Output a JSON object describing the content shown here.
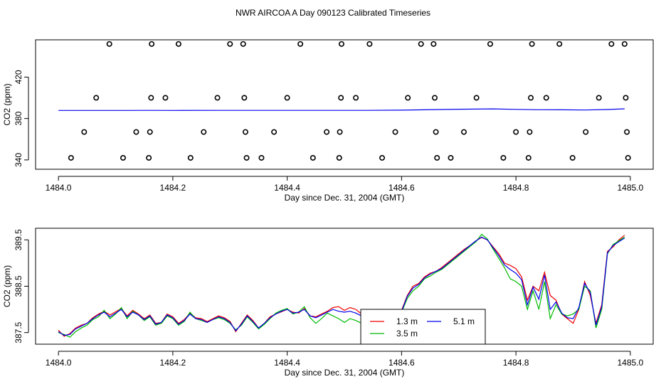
{
  "title": "NWR AIRCOA A  Day 090123  Calibrated Timeseries",
  "colors": {
    "series_1_3m": "#ee0000",
    "series_3_5m": "#00bb00",
    "series_5_1m": "#0000ee",
    "points": "#000000"
  },
  "chart_data": [
    {
      "type": "scatter",
      "title": "",
      "xlabel": "Day since Dec. 31, 2004 (GMT)",
      "ylabel": "CO2 (ppm)",
      "xlim": [
        1483.96,
        1485.04
      ],
      "ylim": [
        331,
        456
      ],
      "xticks": [
        "1484.0",
        "1484.2",
        "1484.4",
        "1484.6",
        "1484.8",
        "1485.0"
      ],
      "yticks": [
        "340",
        "380",
        "420"
      ],
      "grid": false,
      "points": [
        {
          "x": 1484.022,
          "y": 342
        },
        {
          "x": 1484.045,
          "y": 367
        },
        {
          "x": 1484.066,
          "y": 400
        },
        {
          "x": 1484.089,
          "y": 452
        },
        {
          "x": 1484.113,
          "y": 342
        },
        {
          "x": 1484.136,
          "y": 367
        },
        {
          "x": 1484.158,
          "y": 342
        },
        {
          "x": 1484.16,
          "y": 367
        },
        {
          "x": 1484.162,
          "y": 400
        },
        {
          "x": 1484.163,
          "y": 452
        },
        {
          "x": 1484.187,
          "y": 400
        },
        {
          "x": 1484.21,
          "y": 452
        },
        {
          "x": 1484.231,
          "y": 342
        },
        {
          "x": 1484.254,
          "y": 367
        },
        {
          "x": 1484.278,
          "y": 400
        },
        {
          "x": 1484.3,
          "y": 452
        },
        {
          "x": 1484.323,
          "y": 452
        },
        {
          "x": 1484.325,
          "y": 400
        },
        {
          "x": 1484.327,
          "y": 367
        },
        {
          "x": 1484.329,
          "y": 342
        },
        {
          "x": 1484.355,
          "y": 342
        },
        {
          "x": 1484.377,
          "y": 367
        },
        {
          "x": 1484.4,
          "y": 400
        },
        {
          "x": 1484.423,
          "y": 452
        },
        {
          "x": 1484.445,
          "y": 342
        },
        {
          "x": 1484.469,
          "y": 367
        },
        {
          "x": 1484.491,
          "y": 342
        },
        {
          "x": 1484.492,
          "y": 367
        },
        {
          "x": 1484.494,
          "y": 400
        },
        {
          "x": 1484.495,
          "y": 452
        },
        {
          "x": 1484.52,
          "y": 400
        },
        {
          "x": 1484.544,
          "y": 452
        },
        {
          "x": 1484.566,
          "y": 342
        },
        {
          "x": 1484.589,
          "y": 367
        },
        {
          "x": 1484.611,
          "y": 400
        },
        {
          "x": 1484.634,
          "y": 452
        },
        {
          "x": 1484.656,
          "y": 452
        },
        {
          "x": 1484.658,
          "y": 400
        },
        {
          "x": 1484.66,
          "y": 367
        },
        {
          "x": 1484.662,
          "y": 342
        },
        {
          "x": 1484.686,
          "y": 342
        },
        {
          "x": 1484.709,
          "y": 367
        },
        {
          "x": 1484.731,
          "y": 400
        },
        {
          "x": 1484.755,
          "y": 452
        },
        {
          "x": 1484.778,
          "y": 342
        },
        {
          "x": 1484.8,
          "y": 367
        },
        {
          "x": 1484.822,
          "y": 342
        },
        {
          "x": 1484.824,
          "y": 367
        },
        {
          "x": 1484.826,
          "y": 400
        },
        {
          "x": 1484.828,
          "y": 452
        },
        {
          "x": 1484.853,
          "y": 400
        },
        {
          "x": 1484.876,
          "y": 452
        },
        {
          "x": 1484.899,
          "y": 342
        },
        {
          "x": 1484.922,
          "y": 367
        },
        {
          "x": 1484.945,
          "y": 400
        },
        {
          "x": 1484.967,
          "y": 452
        },
        {
          "x": 1484.99,
          "y": 452
        },
        {
          "x": 1484.992,
          "y": 400
        },
        {
          "x": 1484.994,
          "y": 367
        },
        {
          "x": 1484.996,
          "y": 342
        }
      ],
      "series": [
        {
          "color": "#0000ee",
          "x": [
            1484.0,
            1484.06,
            1484.12,
            1484.16,
            1484.2,
            1484.28,
            1484.35,
            1484.4,
            1484.44,
            1484.5,
            1484.54,
            1484.6,
            1484.64,
            1484.7,
            1484.76,
            1484.8,
            1484.84,
            1484.88,
            1484.92,
            1484.96,
            1484.99
          ],
          "y": [
            387.8,
            387.8,
            387.8,
            387.9,
            387.8,
            387.9,
            387.9,
            387.9,
            387.9,
            387.9,
            387.9,
            388.1,
            388.4,
            389.0,
            389.3,
            388.8,
            388.5,
            388.4,
            388.2,
            388.7,
            389.4
          ]
        }
      ]
    },
    {
      "type": "line",
      "title": "",
      "xlabel": "Day since Dec. 31, 2004 (GMT)",
      "ylabel": "CO2 (ppm)",
      "xlim": [
        1483.96,
        1485.04
      ],
      "ylim": [
        387.25,
        389.75
      ],
      "xticks": [
        "1484.0",
        "1484.2",
        "1484.4",
        "1484.6",
        "1484.8",
        "1485.0"
      ],
      "yticks": [
        "387.5",
        "388.5",
        "389.5"
      ],
      "grid": false,
      "legend_position": "bottom-center",
      "series": [
        {
          "name": "1.3 m",
          "color": "#ee0000",
          "x": [
            1484.0,
            1484.01,
            1484.02,
            1484.03,
            1484.04,
            1484.05,
            1484.06,
            1484.07,
            1484.08,
            1484.09,
            1484.1,
            1484.11,
            1484.12,
            1484.13,
            1484.14,
            1484.15,
            1484.16,
            1484.17,
            1484.18,
            1484.19,
            1484.2,
            1484.21,
            1484.22,
            1484.23,
            1484.24,
            1484.25,
            1484.26,
            1484.27,
            1484.28,
            1484.29,
            1484.3,
            1484.31,
            1484.32,
            1484.33,
            1484.34,
            1484.35,
            1484.36,
            1484.37,
            1484.38,
            1484.39,
            1484.4,
            1484.41,
            1484.42,
            1484.43,
            1484.44,
            1484.45,
            1484.46,
            1484.47,
            1484.48,
            1484.49,
            1484.5,
            1484.51,
            1484.52,
            1484.53,
            1484.54,
            1484.55,
            1484.56,
            1484.57,
            1484.58,
            1484.59,
            1484.6,
            1484.61,
            1484.62,
            1484.63,
            1484.64,
            1484.65,
            1484.66,
            1484.67,
            1484.68,
            1484.69,
            1484.7,
            1484.71,
            1484.72,
            1484.73,
            1484.74,
            1484.75,
            1484.76,
            1484.77,
            1484.78,
            1484.79,
            1484.8,
            1484.81,
            1484.82,
            1484.83,
            1484.84,
            1484.85,
            1484.86,
            1484.87,
            1484.88,
            1484.89,
            1484.9,
            1484.91,
            1484.92,
            1484.93,
            1484.94,
            1484.95,
            1484.96,
            1484.97,
            1484.98,
            1484.99
          ],
          "y": [
            387.55,
            387.42,
            387.48,
            387.6,
            387.66,
            387.7,
            387.82,
            387.9,
            387.96,
            387.88,
            387.95,
            388.02,
            387.86,
            387.98,
            387.9,
            387.8,
            387.88,
            387.7,
            387.72,
            387.9,
            387.84,
            387.7,
            387.78,
            387.92,
            387.82,
            387.8,
            387.74,
            387.8,
            387.86,
            387.82,
            387.74,
            387.52,
            387.7,
            387.88,
            387.76,
            387.6,
            387.7,
            387.84,
            387.9,
            387.95,
            388.0,
            387.94,
            387.92,
            388.02,
            387.86,
            387.84,
            387.9,
            387.96,
            388.04,
            388.06,
            387.98,
            388.04,
            388.0,
            387.9,
            387.96,
            387.92,
            388.0,
            387.94,
            387.98,
            387.92,
            387.98,
            388.3,
            388.5,
            388.56,
            388.7,
            388.78,
            388.82,
            388.9,
            389.0,
            389.1,
            389.2,
            389.3,
            389.38,
            389.48,
            389.55,
            389.5,
            389.35,
            389.2,
            389.0,
            388.95,
            388.88,
            388.7,
            388.2,
            388.5,
            388.4,
            388.8,
            388.3,
            388.2,
            387.9,
            387.8,
            387.7,
            388.0,
            388.6,
            388.3,
            387.7,
            388.1,
            389.25,
            389.35,
            389.5,
            389.6
          ]
        },
        {
          "name": "3.5 m",
          "color": "#00bb00",
          "x": [
            1484.0,
            1484.01,
            1484.02,
            1484.03,
            1484.04,
            1484.05,
            1484.06,
            1484.07,
            1484.08,
            1484.09,
            1484.1,
            1484.11,
            1484.12,
            1484.13,
            1484.14,
            1484.15,
            1484.16,
            1484.17,
            1484.18,
            1484.19,
            1484.2,
            1484.21,
            1484.22,
            1484.23,
            1484.24,
            1484.25,
            1484.26,
            1484.27,
            1484.28,
            1484.29,
            1484.3,
            1484.31,
            1484.32,
            1484.33,
            1484.34,
            1484.35,
            1484.36,
            1484.37,
            1484.38,
            1484.39,
            1484.4,
            1484.41,
            1484.42,
            1484.43,
            1484.44,
            1484.45,
            1484.46,
            1484.47,
            1484.48,
            1484.49,
            1484.5,
            1484.51,
            1484.52,
            1484.53,
            1484.54,
            1484.55,
            1484.56,
            1484.57,
            1484.58,
            1484.59,
            1484.6,
            1484.61,
            1484.62,
            1484.63,
            1484.64,
            1484.65,
            1484.66,
            1484.67,
            1484.68,
            1484.69,
            1484.7,
            1484.71,
            1484.72,
            1484.73,
            1484.74,
            1484.75,
            1484.76,
            1484.77,
            1484.78,
            1484.79,
            1484.8,
            1484.81,
            1484.82,
            1484.83,
            1484.84,
            1484.85,
            1484.86,
            1484.87,
            1484.88,
            1484.89,
            1484.9,
            1484.91,
            1484.92,
            1484.93,
            1484.94,
            1484.95,
            1484.96,
            1484.97,
            1484.98,
            1484.99
          ],
          "y": [
            387.5,
            387.46,
            387.4,
            387.52,
            387.6,
            387.66,
            387.78,
            387.84,
            387.98,
            387.8,
            387.9,
            388.04,
            387.8,
            387.96,
            387.88,
            387.76,
            387.84,
            387.66,
            387.7,
            387.86,
            387.8,
            387.66,
            387.74,
            387.94,
            387.8,
            387.76,
            387.72,
            387.78,
            387.82,
            387.78,
            387.7,
            387.56,
            387.66,
            387.84,
            387.72,
            387.58,
            387.68,
            387.8,
            387.92,
            387.98,
            388.02,
            387.9,
            387.94,
            388.06,
            387.82,
            387.7,
            387.8,
            387.92,
            387.86,
            387.8,
            387.72,
            387.8,
            387.76,
            387.7,
            387.78,
            387.8,
            387.86,
            387.9,
            387.84,
            387.86,
            387.94,
            388.24,
            388.4,
            388.5,
            388.66,
            388.72,
            388.8,
            388.86,
            388.96,
            389.06,
            389.16,
            389.26,
            389.36,
            389.46,
            389.62,
            389.52,
            389.3,
            389.1,
            388.9,
            388.66,
            388.6,
            388.5,
            388.0,
            388.4,
            388.0,
            388.6,
            387.8,
            388.1,
            387.9,
            387.86,
            387.9,
            388.0,
            388.5,
            388.4,
            387.6,
            388.0,
            389.2,
            389.4,
            389.48,
            389.56
          ]
        },
        {
          "name": "5.1 m",
          "color": "#0000ee",
          "x": [
            1484.0,
            1484.01,
            1484.02,
            1484.03,
            1484.04,
            1484.05,
            1484.06,
            1484.07,
            1484.08,
            1484.09,
            1484.1,
            1484.11,
            1484.12,
            1484.13,
            1484.14,
            1484.15,
            1484.16,
            1484.17,
            1484.18,
            1484.19,
            1484.2,
            1484.21,
            1484.22,
            1484.23,
            1484.24,
            1484.25,
            1484.26,
            1484.27,
            1484.28,
            1484.29,
            1484.3,
            1484.31,
            1484.32,
            1484.33,
            1484.34,
            1484.35,
            1484.36,
            1484.37,
            1484.38,
            1484.39,
            1484.4,
            1484.41,
            1484.42,
            1484.43,
            1484.44,
            1484.45,
            1484.46,
            1484.47,
            1484.48,
            1484.49,
            1484.5,
            1484.51,
            1484.52,
            1484.53,
            1484.54,
            1484.55,
            1484.56,
            1484.57,
            1484.58,
            1484.59,
            1484.6,
            1484.61,
            1484.62,
            1484.63,
            1484.64,
            1484.65,
            1484.66,
            1484.67,
            1484.68,
            1484.69,
            1484.7,
            1484.71,
            1484.72,
            1484.73,
            1484.74,
            1484.75,
            1484.76,
            1484.77,
            1484.78,
            1484.79,
            1484.8,
            1484.81,
            1484.82,
            1484.83,
            1484.84,
            1484.85,
            1484.86,
            1484.87,
            1484.88,
            1484.89,
            1484.9,
            1484.91,
            1484.92,
            1484.93,
            1484.94,
            1484.95,
            1484.96,
            1484.97,
            1484.98,
            1484.99
          ],
          "y": [
            387.52,
            387.44,
            387.46,
            387.58,
            387.64,
            387.7,
            387.8,
            387.88,
            387.94,
            387.84,
            387.92,
            388.0,
            387.84,
            387.94,
            387.88,
            387.78,
            387.86,
            387.68,
            387.72,
            387.88,
            387.82,
            387.68,
            387.76,
            387.9,
            387.8,
            387.78,
            387.72,
            387.78,
            387.84,
            387.8,
            387.72,
            387.54,
            387.68,
            387.86,
            387.74,
            387.6,
            387.7,
            387.82,
            387.9,
            387.96,
            388.0,
            387.92,
            387.94,
            388.0,
            387.86,
            387.82,
            387.88,
            387.94,
            388.0,
            387.96,
            387.94,
            387.96,
            387.92,
            387.86,
            387.92,
            387.9,
            387.94,
            387.92,
            387.94,
            387.9,
            387.96,
            388.28,
            388.46,
            388.54,
            388.68,
            388.76,
            388.82,
            388.88,
            388.98,
            389.08,
            389.18,
            389.28,
            389.38,
            389.48,
            389.56,
            389.5,
            389.33,
            389.16,
            388.96,
            388.86,
            388.78,
            388.64,
            388.1,
            388.48,
            388.22,
            388.74,
            388.0,
            388.16,
            387.92,
            387.82,
            387.8,
            388.04,
            388.56,
            388.36,
            387.66,
            388.06,
            389.22,
            389.38,
            389.46,
            389.54
          ]
        }
      ]
    }
  ]
}
